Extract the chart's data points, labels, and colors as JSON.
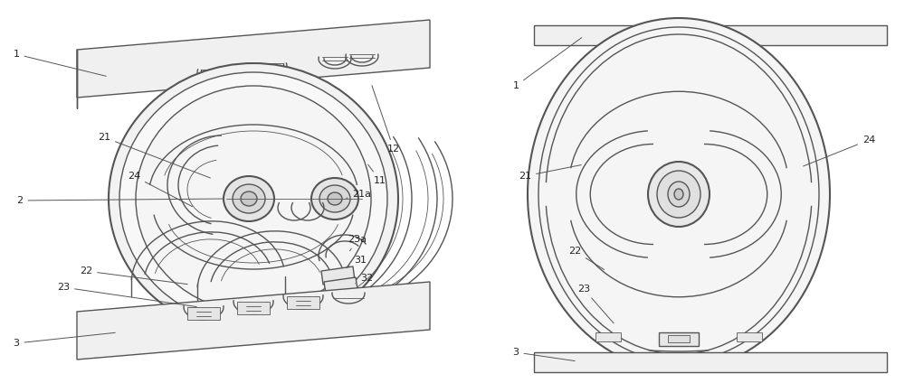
{
  "bg_color": "#ffffff",
  "lc": "#555555",
  "lc2": "#888888",
  "lw": 1.0,
  "lw_thick": 1.5,
  "lw_thin": 0.6,
  "fs": 8.0,
  "fig_w": 10.0,
  "fig_h": 4.24
}
